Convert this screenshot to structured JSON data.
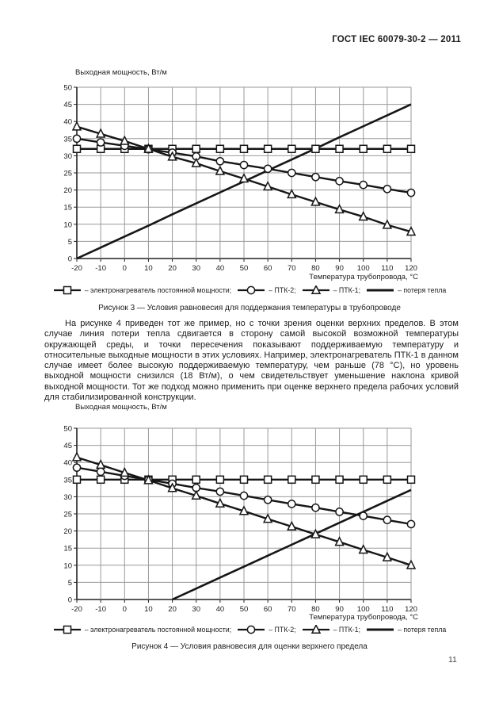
{
  "header": {
    "title": "ГОСТ IEC 60079-30-2 — 2011"
  },
  "page_number": "11",
  "paragraph": "На рисунке 4 приведен тот же пример, но с точки зрения оценки верхних пределов. В этом случае линия потери тепла сдвигается в сторону самой высокой возможной температуры окружающей среды, и точки пересечения показывают поддерживаемую температуру и относительные выходные мощности в этих условиях. Например, электронагреватель ПТК-1 в данном случае имеет более высокую поддерживаемую температуру, чем раньше (78 °С), но уровень выходной мощности снизился (18 Вт/м), о чем свидетельствует уменьшение наклона кривой выходной мощности. Тот же подход можно применить при оценке верхнего предела рабочих условий для стабилизированной конструкции.",
  "legend": {
    "items": [
      {
        "marker": "square",
        "label": "– электронагреватель постоянной мощности;"
      },
      {
        "marker": "circle",
        "label": "– ПТК-2;"
      },
      {
        "marker": "triangle",
        "label": "– ПТК-1;"
      },
      {
        "marker": "line",
        "label": "– потеря тепла"
      }
    ]
  },
  "figure3": {
    "y_axis_title": "Выходная мощность, Вт/м",
    "x_axis_title": "Температура трубопровода, °С",
    "caption": "Рисунок 3 — Условия равновесия для поддержания температуры в трубопроводе"
  },
  "figure4": {
    "y_axis_title": "Выходная мощность, Вт/м",
    "x_axis_title": "Температура трубопровода, °С",
    "caption": "Рисунок 4 — Условия равновесия для оценки верхнего предела"
  },
  "colors": {
    "line": "#161616",
    "grid": "#999999",
    "axis": "#222222",
    "marker_fill": "#ffffff"
  },
  "chart_data": [
    {
      "id": "figure3",
      "type": "line",
      "title": "Рисунок 3 — Условия равновесия для поддержания температуры в трубопроводе",
      "xlabel": "Температура трубопровода, °С",
      "ylabel": "Выходная мощность, Вт/м",
      "xlim": [
        -20,
        120
      ],
      "ylim": [
        0,
        50
      ],
      "x_tick_step": 10,
      "y_tick_step": 5,
      "grid": true,
      "legend_position": "bottom",
      "x": [
        -20,
        -10,
        0,
        10,
        20,
        30,
        40,
        50,
        60,
        70,
        80,
        90,
        100,
        110,
        120
      ],
      "series": [
        {
          "name": "электронагреватель постоянной мощности",
          "marker": "square",
          "values": [
            32,
            32,
            32,
            32,
            32,
            32,
            32,
            32,
            32,
            32,
            32,
            32,
            32,
            32,
            32
          ]
        },
        {
          "name": "ПТК-2",
          "marker": "circle",
          "values": [
            35,
            33.9,
            32.9,
            31.9,
            30.9,
            29.8,
            28.4,
            27.3,
            26.2,
            25,
            23.8,
            22.6,
            21.5,
            20.3,
            19.2
          ]
        },
        {
          "name": "ПТК-1",
          "marker": "triangle",
          "values": [
            38.5,
            36.4,
            34.3,
            32,
            29.7,
            27.8,
            25.5,
            23.3,
            21,
            18.7,
            16.5,
            14.3,
            12.2,
            9.8,
            7.8
          ]
        },
        {
          "name": "потеря тепла",
          "marker": "none",
          "values": [
            0,
            3.2,
            6.4,
            9.6,
            12.9,
            16.1,
            19.3,
            22.5,
            25.7,
            28.9,
            32.1,
            35.4,
            38.6,
            41.8,
            45
          ]
        }
      ]
    },
    {
      "id": "figure4",
      "type": "line",
      "title": "Рисунок 4 — Условия равновесия для оценки верхнего предела",
      "xlabel": "Температура трубопровода, °С",
      "ylabel": "Выходная мощность, Вт/м",
      "xlim": [
        -20,
        120
      ],
      "ylim": [
        0,
        50
      ],
      "x_tick_step": 10,
      "y_tick_step": 5,
      "grid": true,
      "legend_position": "bottom",
      "x": [
        -20,
        -10,
        0,
        10,
        20,
        30,
        40,
        50,
        60,
        70,
        80,
        90,
        100,
        110,
        120
      ],
      "series": [
        {
          "name": "электронагреватель постоянной мощности",
          "marker": "square",
          "values": [
            35,
            35,
            35,
            35,
            35,
            35,
            35,
            35,
            35,
            35,
            35,
            35,
            35,
            35,
            35
          ]
        },
        {
          "name": "ПТК-2",
          "marker": "circle",
          "values": [
            38.5,
            37.3,
            36.1,
            35,
            33.8,
            32.6,
            31.5,
            30.3,
            29.1,
            27.9,
            26.8,
            25.6,
            24.4,
            23.2,
            22
          ]
        },
        {
          "name": "ПТК-1",
          "marker": "triangle",
          "values": [
            41.5,
            39.3,
            37,
            34.8,
            32.5,
            30.3,
            28,
            25.8,
            23.5,
            21.3,
            19,
            16.8,
            14.5,
            12.3,
            10
          ]
        },
        {
          "name": "потеря тепла",
          "marker": "none",
          "x": [
            20,
            30,
            40,
            50,
            60,
            70,
            80,
            90,
            100,
            110,
            120
          ],
          "values": [
            0,
            3.2,
            6.4,
            9.6,
            12.8,
            16,
            19.2,
            22.4,
            25.6,
            28.8,
            32
          ]
        }
      ]
    }
  ]
}
